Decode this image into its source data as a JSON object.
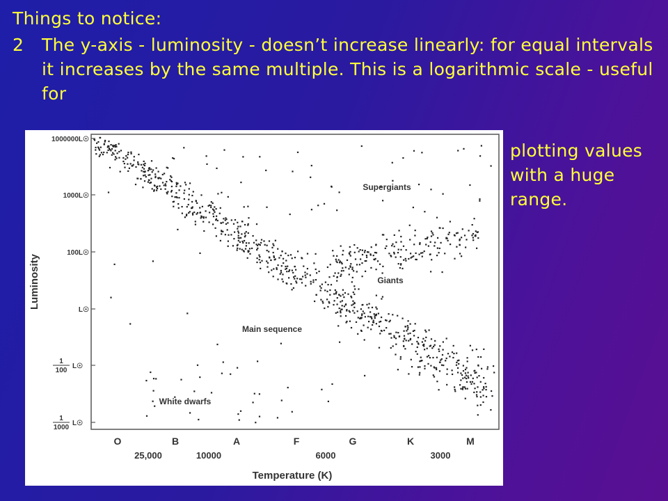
{
  "slide": {
    "title": "Things to notice:",
    "point_number": "2",
    "point_text": "The y-axis - luminosity - doesn’t increase linearly: for equal intervals it increases by the same multiple.  This is a logarithmic scale - useful for",
    "point_text_continued": "plotting values with a huge range.",
    "text_color": "#ffff3a"
  },
  "chart_data": {
    "type": "scatter",
    "title": "",
    "xlabel": "Temperature (K)",
    "ylabel": "Luminosity",
    "y_scale": "log",
    "x_direction": "decreasing temperature left to right",
    "y_ticks": [
      "1000000L☉",
      "1000L☉",
      "100L☉",
      "L☉",
      "1/100 L☉",
      "1/1000 L☉"
    ],
    "spectral_classes": [
      "O",
      "B",
      "A",
      "F",
      "G",
      "K",
      "M"
    ],
    "temperature_ticks": [
      "25,000",
      "10000",
      "6000",
      "3000"
    ],
    "region_labels": [
      "Supergiants",
      "Giants",
      "Main sequence",
      "White dwarfs"
    ],
    "series": [
      {
        "name": "Main sequence",
        "region": "diagonal from O (high luminosity) to M (low luminosity)"
      },
      {
        "name": "Giants",
        "region": "G–M, 10–1000 L☉"
      },
      {
        "name": "Supergiants",
        "region": "upper band across all classes"
      },
      {
        "name": "White dwarfs",
        "region": "lower left, B–A"
      }
    ]
  }
}
